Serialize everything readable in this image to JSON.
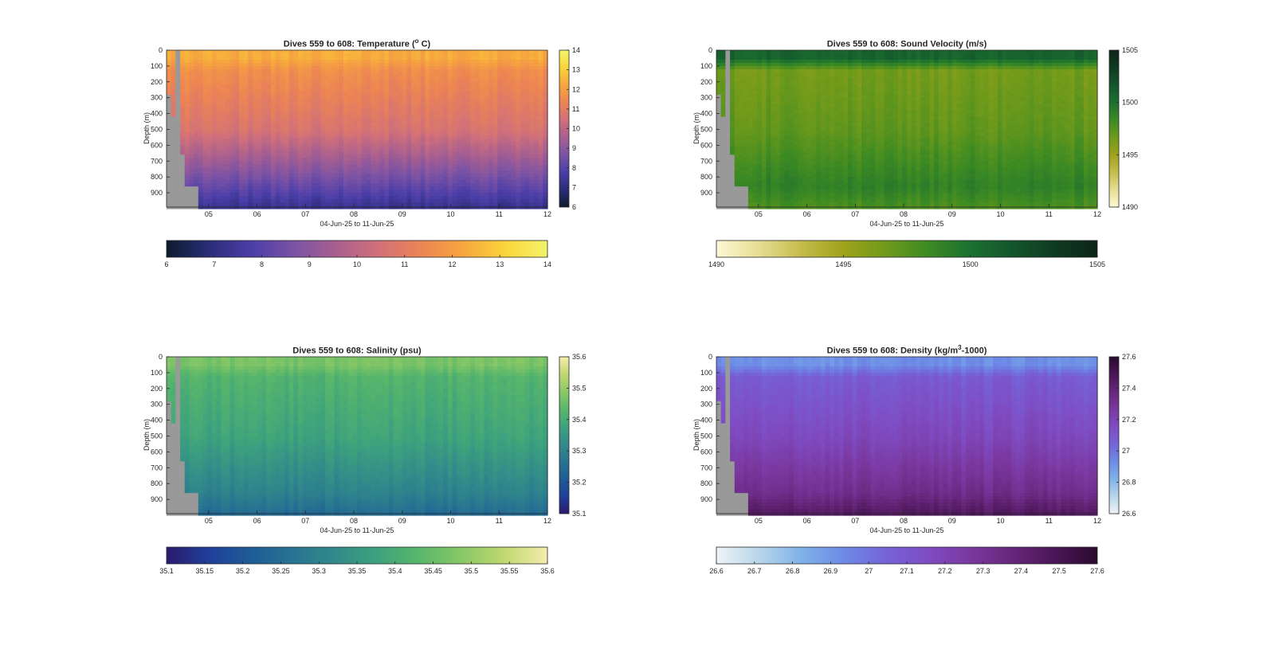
{
  "chart_data": [
    {
      "type": "heatmap",
      "id": "temperature",
      "title_pre": "Dives 559 to 608: Temperature (",
      "title_sup": "o",
      "title_post": " C)",
      "xlabel": "04-Jun-25 to 11-Jun-25",
      "ylabel": "Depth (m)",
      "xticks": [
        "05",
        "06",
        "07",
        "08",
        "09",
        "10",
        "11",
        "12"
      ],
      "yticks": [
        "0",
        "100",
        "200",
        "300",
        "400",
        "500",
        "600",
        "700",
        "800",
        "900"
      ],
      "xlim": [
        4.13,
        12
      ],
      "ylim": [
        0,
        990
      ],
      "colorbar_ticks": [
        "6",
        "7",
        "8",
        "9",
        "10",
        "11",
        "12",
        "13",
        "14"
      ],
      "hbar_ticks": [
        "6",
        "7",
        "8",
        "9",
        "10",
        "11",
        "12",
        "13",
        "14"
      ],
      "colormap": [
        "#0d1b2e",
        "#2a2d78",
        "#4b3ea8",
        "#7a52a5",
        "#a85f90",
        "#d0707a",
        "#ec8454",
        "#f6a63e",
        "#fbd43a",
        "#f4f46a"
      ],
      "range": [
        6,
        14
      ],
      "profile": {
        "surface": 12.3,
        "mixed": 11.6,
        "thermo": 10.6,
        "deep": 8.2,
        "bottom": 7.2
      },
      "missing_color": "#999999"
    },
    {
      "type": "heatmap",
      "id": "sound_velocity",
      "title_pre": "Dives 559 to 608: Sound Velocity (m/s)",
      "title_sup": "",
      "title_post": "",
      "xlabel": "04-Jun-25 to 11-Jun-25",
      "ylabel": "Depth (m)",
      "xticks": [
        "05",
        "06",
        "07",
        "08",
        "09",
        "10",
        "11",
        "12"
      ],
      "yticks": [
        "0",
        "100",
        "200",
        "300",
        "400",
        "500",
        "600",
        "700",
        "800",
        "900"
      ],
      "xlim": [
        4.13,
        12
      ],
      "ylim": [
        0,
        990
      ],
      "colorbar_ticks": [
        "1490",
        "1495",
        "1500",
        "1505"
      ],
      "hbar_ticks": [
        "1490",
        "1495",
        "1500"
      ],
      "hbar_end": "1505",
      "colormap": [
        "#fdf8d5",
        "#e6de92",
        "#c5bb4d",
        "#9fa21b",
        "#6f9a1b",
        "#3c8a23",
        "#1c7030",
        "#14552c",
        "#0f3a22",
        "#0c2516"
      ],
      "range": [
        1490,
        1505
      ],
      "profile": {
        "surface": 1500.8,
        "mixed": 1496.5,
        "thermo": 1497.2,
        "deep": 1499.0,
        "bottom": 1497.8
      },
      "missing_color": "#999999"
    },
    {
      "type": "heatmap",
      "id": "salinity",
      "title_pre": "Dives 559 to 608: Salinity (psu)",
      "title_sup": "",
      "title_post": "",
      "xlabel": "04-Jun-25 to 11-Jun-25",
      "ylabel": "Depth (m)",
      "xticks": [
        "05",
        "06",
        "07",
        "08",
        "09",
        "10",
        "11",
        "12"
      ],
      "yticks": [
        "0",
        "100",
        "200",
        "300",
        "400",
        "500",
        "600",
        "700",
        "800",
        "900"
      ],
      "xlim": [
        4.13,
        12
      ],
      "ylim": [
        0,
        990
      ],
      "colorbar_ticks": [
        "35.1",
        "35.2",
        "35.3",
        "35.4",
        "35.5",
        "35.6"
      ],
      "hbar_ticks": [
        "35.1",
        "35.15",
        "35.2",
        "35.25",
        "35.3",
        "35.35",
        "35.4",
        "35.45",
        "35.5",
        "35.55",
        "35.6"
      ],
      "colormap": [
        "#2a1a6e",
        "#1f3f9a",
        "#1f5c96",
        "#287491",
        "#328a8a",
        "#3da27d",
        "#5ab76a",
        "#8ac866",
        "#c1d871",
        "#f6ecad"
      ],
      "range": [
        35.1,
        35.6
      ],
      "profile": {
        "surface": 35.47,
        "mixed": 35.42,
        "thermo": 35.38,
        "deep": 35.3,
        "bottom": 35.24
      },
      "missing_color": "#999999"
    },
    {
      "type": "heatmap",
      "id": "density",
      "title_pre": "Dives 559 to 608: Density (kg/m",
      "title_sup": "3",
      "title_post": "-1000)",
      "xlabel": "04-Jun-25 to 11-Jun-25",
      "ylabel": "Depth (m)",
      "xticks": [
        "05",
        "06",
        "07",
        "08",
        "09",
        "10",
        "11",
        "12"
      ],
      "yticks": [
        "0",
        "100",
        "200",
        "300",
        "400",
        "500",
        "600",
        "700",
        "800",
        "900"
      ],
      "xlim": [
        4.13,
        12
      ],
      "ylim": [
        0,
        990
      ],
      "colorbar_ticks": [
        "26.6",
        "26.8",
        "27",
        "27.2",
        "27.4",
        "27.6"
      ],
      "hbar_ticks": [
        "26.6",
        "26.7",
        "26.8",
        "26.9",
        "27",
        "27.1",
        "27.2",
        "27.3",
        "27.4",
        "27.5",
        "27.6"
      ],
      "colormap": [
        "#eef4f6",
        "#b8d6ea",
        "#7fb2e8",
        "#6d8be6",
        "#7563d8",
        "#7f4cc2",
        "#7a389f",
        "#66267a",
        "#4a1656",
        "#2b0b2f"
      ],
      "range": [
        26.6,
        27.6
      ],
      "profile": {
        "surface": 26.92,
        "mixed": 27.08,
        "thermo": 27.18,
        "deep": 27.33,
        "bottom": 27.47
      },
      "missing_color": "#999999"
    }
  ]
}
